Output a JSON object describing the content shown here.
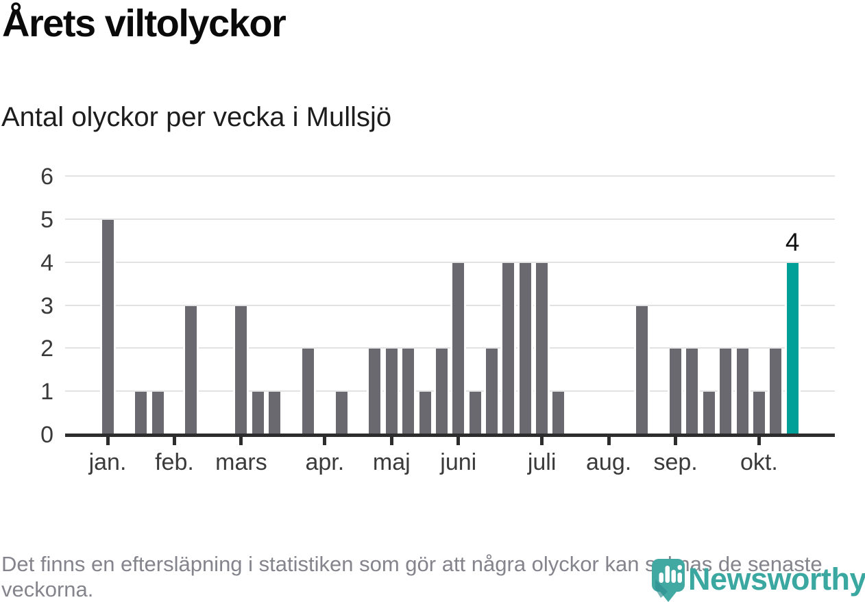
{
  "title": "Årets viltolyckor",
  "subtitle": "Antal olyckor per vecka i Mullsjö",
  "footnote": "Det finns en eftersläpning i statistiken som gör att några olyckor kan saknas de senaste veckorna.",
  "brand": {
    "name": "Newsworthy",
    "icon": "newsworthy-speech-bubble-chart-icon"
  },
  "colors": {
    "bar": "#69696f",
    "highlight": "#00a099",
    "grid": "#e2e2e2",
    "axis": "#2d2d2d",
    "axis_label": "#3a3a3a",
    "annotation": "#111111",
    "title": "#0a0a0a",
    "footnote": "#84848c",
    "brand": "#3aa7a1"
  },
  "chart_data": {
    "type": "bar",
    "title": "Årets viltolyckor",
    "subtitle": "Antal olyckor per vecka i Mullsjö",
    "x_unit": "vecka",
    "values": [
      5,
      0,
      1,
      1,
      0,
      3,
      0,
      0,
      3,
      1,
      1,
      0,
      2,
      0,
      1,
      0,
      2,
      2,
      2,
      1,
      2,
      4,
      1,
      2,
      4,
      4,
      4,
      1,
      0,
      0,
      0,
      0,
      3,
      0,
      2,
      2,
      1,
      2,
      2,
      1,
      2,
      4
    ],
    "highlight_index": 41,
    "annotations": [
      {
        "index": 41,
        "label": "4"
      }
    ],
    "months": [
      {
        "label": "jan.",
        "index": 0
      },
      {
        "label": "feb.",
        "index": 4
      },
      {
        "label": "mars",
        "index": 8
      },
      {
        "label": "apr.",
        "index": 13
      },
      {
        "label": "maj",
        "index": 17
      },
      {
        "label": "juni",
        "index": 21
      },
      {
        "label": "juli",
        "index": 26
      },
      {
        "label": "aug.",
        "index": 30
      },
      {
        "label": "sep.",
        "index": 34
      },
      {
        "label": "okt.",
        "index": 39
      }
    ],
    "ylim": [
      0,
      6
    ],
    "yticks": [
      0,
      1,
      2,
      3,
      4,
      5,
      6
    ],
    "grid": true,
    "legend": false
  }
}
